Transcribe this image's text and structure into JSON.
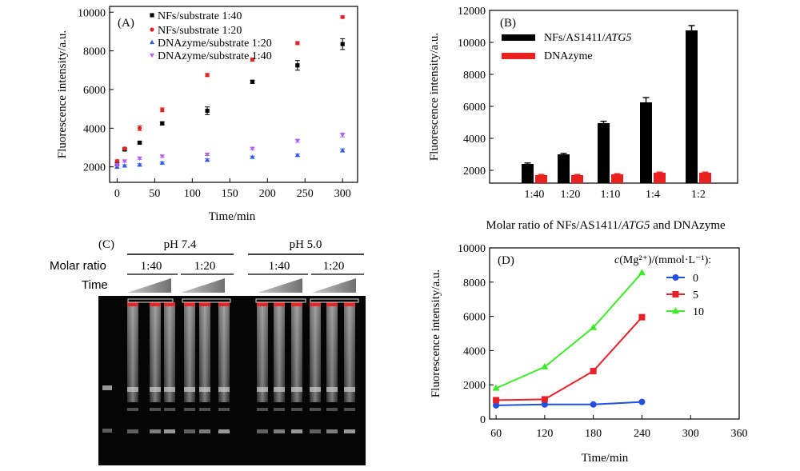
{
  "chart_data": [
    {
      "panel": "(A)",
      "type": "scatter",
      "xlabel": "Time/min",
      "ylabel": "Fluorescence intensity/a.u.",
      "xlim": [
        -10,
        320
      ],
      "ylim": [
        1200,
        10300
      ],
      "xticks": [
        0,
        50,
        100,
        150,
        200,
        250,
        300
      ],
      "yticks": [
        2000,
        4000,
        6000,
        8000,
        10000
      ],
      "legend_position": "top-left",
      "series": [
        {
          "name": "NFs/substrate 1:40",
          "color": "#000000",
          "marker": "square",
          "x": [
            0,
            10,
            30,
            60,
            120,
            180,
            240,
            300
          ],
          "y": [
            2150,
            2900,
            3250,
            4250,
            4900,
            6400,
            7250,
            8350
          ],
          "err": [
            80,
            60,
            60,
            80,
            200,
            80,
            250,
            280
          ]
        },
        {
          "name": "NFs/substrate 1:20",
          "color": "#e02424",
          "marker": "circle",
          "x": [
            0,
            10,
            30,
            60,
            120,
            180,
            240,
            300
          ],
          "y": [
            2300,
            2950,
            4000,
            4950,
            6750,
            7550,
            8400,
            9750
          ],
          "err": [
            60,
            60,
            120,
            100,
            80,
            80,
            80,
            60
          ]
        },
        {
          "name": "DNAzyme/substrate 1:20",
          "color": "#2a57e8",
          "marker": "triangle-up",
          "x": [
            0,
            10,
            30,
            60,
            120,
            180,
            240,
            300
          ],
          "y": [
            2000,
            2050,
            2100,
            2200,
            2350,
            2500,
            2600,
            2850
          ],
          "err": [
            80,
            60,
            60,
            60,
            60,
            60,
            60,
            80
          ]
        },
        {
          "name": "DNAzyme/substrate 1:40",
          "color": "#b45ff0",
          "marker": "triangle-down",
          "x": [
            0,
            10,
            30,
            60,
            120,
            180,
            240,
            300
          ],
          "y": [
            2100,
            2300,
            2450,
            2550,
            2650,
            2950,
            3350,
            3650
          ],
          "err": [
            60,
            60,
            60,
            60,
            60,
            60,
            80,
            100
          ]
        }
      ]
    },
    {
      "panel": "(B)",
      "type": "bar",
      "xlabel_parts": [
        "Molar ratio of NFs/AS1411/",
        "ATG5",
        " and DNAzyme"
      ],
      "ylabel": "Fluorescence intensity/a.u.",
      "ylim": [
        1200,
        12000
      ],
      "yticks": [
        2000,
        4000,
        6000,
        8000,
        10000,
        12000
      ],
      "categories": [
        "1:40",
        "1:20",
        "1:10",
        "1:4",
        "1:2"
      ],
      "legend_position": "top-left",
      "series": [
        {
          "name_parts": [
            "NFs/AS1411/",
            "ATG5"
          ],
          "color": "#000000",
          "values": [
            2400,
            3000,
            4950,
            6250,
            10750
          ],
          "err": [
            60,
            60,
            120,
            300,
            300
          ]
        },
        {
          "name_parts": [
            "DNAzyme",
            ""
          ],
          "color": "#e82020",
          "values": [
            1700,
            1700,
            1750,
            1850,
            1850
          ],
          "err": [
            40,
            40,
            40,
            40,
            40
          ]
        }
      ]
    },
    {
      "panel": "(D)",
      "type": "line",
      "xlabel": "Time/min",
      "ylabel": "Fluorescence intensity/a.u.",
      "xlim": [
        52,
        360
      ],
      "ylim": [
        0,
        10000
      ],
      "xticks": [
        60,
        120,
        180,
        240,
        300,
        360
      ],
      "yticks": [
        0,
        2000,
        4000,
        6000,
        8000,
        10000
      ],
      "legend_title": "c(Mg²⁺)/(mmol·L⁻¹):",
      "legend_position": "top-right",
      "series": [
        {
          "name": "0",
          "color": "#1f4fe0",
          "marker": "circle",
          "x": [
            60,
            120,
            180,
            240
          ],
          "y": [
            800,
            850,
            850,
            1000
          ]
        },
        {
          "name": "5",
          "color": "#e8202a",
          "marker": "square",
          "x": [
            60,
            120,
            180,
            240
          ],
          "y": [
            1100,
            1150,
            2800,
            5950
          ]
        },
        {
          "name": "10",
          "color": "#3ee82a",
          "marker": "triangle-up",
          "x": [
            60,
            120,
            180,
            240
          ],
          "y": [
            1800,
            3050,
            5350,
            8550
          ]
        }
      ]
    }
  ],
  "gel_panel": {
    "panel": "(C)",
    "groups": [
      {
        "label": "pH 7.4",
        "ratios": [
          "1:40",
          "1:20"
        ]
      },
      {
        "label": "pH 5.0",
        "ratios": [
          "1:40",
          "1:20"
        ]
      }
    ],
    "row_labels": [
      "Molar ratio",
      "Time"
    ]
  }
}
